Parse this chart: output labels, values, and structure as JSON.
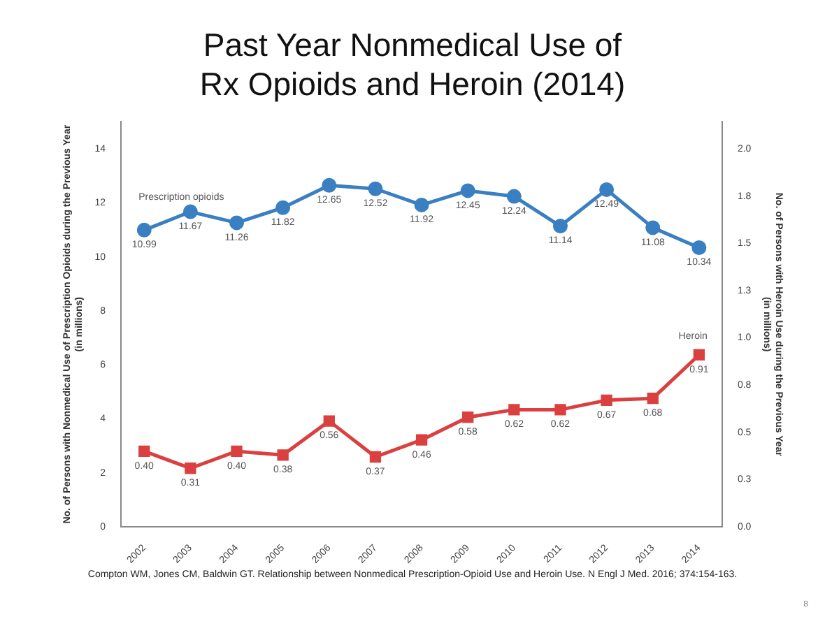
{
  "chart_data": {
    "type": "line",
    "title": "Past Year Nonmedical Use of\nRx Opioids and Heroin (2014)",
    "categories": [
      "2002",
      "2003",
      "2004",
      "2005",
      "2006",
      "2007",
      "2008",
      "2009",
      "2010",
      "2011",
      "2012",
      "2013",
      "2014"
    ],
    "series": [
      {
        "name": "Prescription opioids",
        "color": "#3a7fc1",
        "marker": "circle",
        "values": [
          10.99,
          11.67,
          11.26,
          11.82,
          12.65,
          12.52,
          11.92,
          12.45,
          12.24,
          11.14,
          12.49,
          11.08,
          10.34
        ],
        "value_labels": [
          "10.99",
          "11.67",
          "11.26",
          "11.82",
          "12.65",
          "12.52",
          "11.92",
          "12.45",
          "12.24",
          "11.14",
          "12.49",
          "11.08",
          "10.34"
        ]
      },
      {
        "name": "Heroin",
        "color": "#d9403f",
        "marker": "square",
        "axis": "y2",
        "values": [
          0.4,
          0.31,
          0.4,
          0.38,
          0.56,
          0.37,
          0.46,
          0.58,
          0.62,
          0.62,
          0.67,
          0.68,
          0.91
        ],
        "value_labels": [
          "0.40",
          "0.31",
          "0.40",
          "0.38",
          "0.56",
          "0.37",
          "0.46",
          "0.58",
          "0.62",
          "0.62",
          "0.67",
          "0.68",
          "0.91"
        ]
      }
    ],
    "ylabel": "No. of Persons with Nonmedical Use of Prescription Opioids during the Previous Year (in millions)",
    "y2label": "No. of Persons with Heroin Use during the Previous Year (in millions)",
    "ylim": [
      0,
      15
    ],
    "yticks": [
      0,
      2,
      4,
      6,
      8,
      10,
      12,
      14
    ],
    "y2lim": [
      0,
      2.143
    ],
    "y2ticks": [
      {
        "value": 0,
        "label": "0.0"
      },
      {
        "value": 0.25,
        "label": "0.3"
      },
      {
        "value": 0.5,
        "label": "0.5"
      },
      {
        "value": 0.75,
        "label": "0.8"
      },
      {
        "value": 1,
        "label": "1.0"
      },
      {
        "value": 1.25,
        "label": "1.3"
      },
      {
        "value": 1.5,
        "label": "1.5"
      },
      {
        "value": 1.75,
        "label": "1.8"
      },
      {
        "value": 2,
        "label": "2.0"
      }
    ],
    "grid": false,
    "legend": false,
    "annotations": [
      "Compton WM, Jones CM, Baldwin GT. Relationship between Nonmedical Prescription-Opioid Use and Heroin Use. N Engl J Med. 2016; 374:154-163.",
      "8"
    ]
  }
}
